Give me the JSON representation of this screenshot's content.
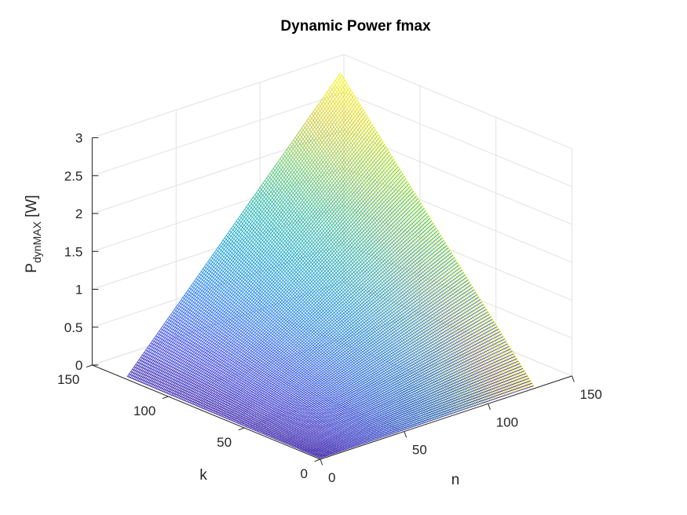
{
  "chart_data": {
    "type": "surface-mesh-3d",
    "title": "Dynamic Power fmax",
    "xlabel": "n",
    "ylabel": "k",
    "zlabel_main": "P",
    "zlabel_sub": "dynMAX",
    "zlabel_unit": " [W]",
    "xlim": [
      0,
      150
    ],
    "ylim": [
      0,
      150
    ],
    "zlim": [
      0,
      3
    ],
    "x_ticks": [
      0,
      50,
      100,
      150
    ],
    "x_tick_labels": [
      "0",
      "50",
      "100",
      "150"
    ],
    "y_ticks": [
      0,
      50,
      100,
      150
    ],
    "y_tick_labels": [
      "0",
      "50",
      "100",
      "150"
    ],
    "z_ticks": [
      0,
      0.5,
      1,
      1.5,
      2,
      2.5,
      3
    ],
    "z_tick_labels": [
      "0",
      "0.5",
      "1",
      "1.5",
      "2",
      "2.5",
      "3"
    ],
    "surface": {
      "x_range": [
        1,
        128
      ],
      "y_range": [
        1,
        128
      ],
      "z_at_max": 3.1,
      "model": "z proportional to k * n"
    },
    "grid": true,
    "colormap": "parula",
    "colormap_stops": [
      "#3e26a8",
      "#4353e8",
      "#2c7ef7",
      "#19a2dc",
      "#23b8b1",
      "#6ccb6c",
      "#d6ca30",
      "#f9fb15"
    ]
  }
}
